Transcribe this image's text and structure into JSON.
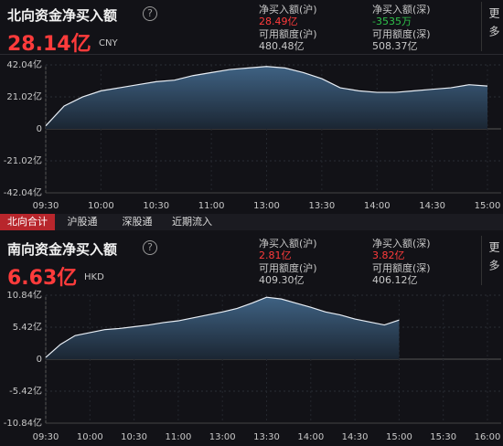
{
  "panels": [
    {
      "title": "北向资金净买入额",
      "amount": "28.14亿",
      "currency": "CNY",
      "more": "更多",
      "stats": [
        {
          "label": "净买入额(沪)",
          "value": "28.49亿",
          "color": "#ff3b3b"
        },
        {
          "label": "净买入额(深)",
          "value": "-3535万",
          "color": "#2fc24a"
        },
        {
          "label": "可用额度(沪)",
          "value": "480.48亿",
          "color": "#c8c8c8"
        },
        {
          "label": "可用额度(深)",
          "value": "508.37亿",
          "color": "#c8c8c8"
        }
      ]
    },
    {
      "title": "南向资金净买入额",
      "amount": "6.63亿",
      "currency": "HKD",
      "more": "更多",
      "stats": [
        {
          "label": "净买入额(沪)",
          "value": "2.81亿",
          "color": "#ff3b3b"
        },
        {
          "label": "净买入额(深)",
          "value": "3.82亿",
          "color": "#ff3b3b"
        },
        {
          "label": "可用额度(沪)",
          "value": "409.30亿",
          "color": "#c8c8c8"
        },
        {
          "label": "可用额度(深)",
          "value": "406.12亿",
          "color": "#c8c8c8"
        }
      ]
    }
  ],
  "tabs": [
    "北向合计",
    "沪股通",
    "深股通",
    "近期流入"
  ],
  "chart_data": [
    {
      "type": "area",
      "color": "#e8eef5",
      "x": [
        "09:30",
        "09:40",
        "09:50",
        "10:00",
        "10:10",
        "10:20",
        "10:30",
        "10:40",
        "10:50",
        "11:00",
        "11:10",
        "11:20",
        "13:00",
        "13:10",
        "13:20",
        "13:30",
        "13:40",
        "13:50",
        "14:00",
        "14:10",
        "14:20",
        "14:30",
        "14:40",
        "14:50",
        "15:00"
      ],
      "values": [
        2,
        15,
        21,
        25,
        27,
        29,
        31,
        32,
        35,
        37,
        39,
        40,
        41,
        40,
        37,
        33,
        27,
        25,
        24,
        24,
        25,
        26,
        27,
        29,
        28.14
      ],
      "ylim": [
        -42.04,
        42.04
      ],
      "yticks": [
        {
          "value": 42.04,
          "label": "42.04亿"
        },
        {
          "value": 21.02,
          "label": "21.02亿"
        },
        0,
        {
          "value": -21.02,
          "label": "-21.02亿"
        },
        {
          "value": -42.04,
          "label": "-42.04亿"
        }
      ],
      "xticks": [
        "09:30",
        "10:00",
        "10:30",
        "11:00",
        "13:00",
        "13:30",
        "14:00",
        "14:30",
        "15:00"
      ]
    },
    {
      "type": "area",
      "color": "#e8eef5",
      "x": [
        "09:30",
        "09:40",
        "09:50",
        "10:00",
        "10:10",
        "10:20",
        "10:30",
        "10:40",
        "10:50",
        "11:00",
        "11:10",
        "11:20",
        "13:00",
        "13:10",
        "13:20",
        "13:30",
        "13:40",
        "13:50",
        "14:00",
        "14:10",
        "14:20",
        "14:30",
        "14:40",
        "14:50",
        "15:00",
        "15:10",
        "15:20",
        "15:30",
        "15:40",
        "15:50",
        "16:00"
      ],
      "values": [
        0.3,
        2.5,
        4,
        4.5,
        5,
        5.2,
        5.5,
        5.8,
        6.2,
        6.5,
        7,
        7.5,
        8,
        8.6,
        9.5,
        10.5,
        10.2,
        9.5,
        8.8,
        8,
        7.5,
        6.8,
        6.3,
        5.8,
        6.63,
        null,
        null,
        null,
        null,
        null,
        null
      ],
      "ylim": [
        -10.84,
        10.84
      ],
      "yticks": [
        {
          "value": 10.84,
          "label": "10.84亿"
        },
        {
          "value": 5.42,
          "label": "5.42亿"
        },
        0,
        {
          "value": -5.42,
          "label": "-5.42亿"
        },
        {
          "value": -10.84,
          "label": "-10.84亿"
        }
      ],
      "xticks": [
        "09:30",
        "10:00",
        "10:30",
        "11:00",
        "13:00",
        "13:30",
        "14:00",
        "14:30",
        "15:00",
        "15:30",
        "16:00"
      ]
    }
  ]
}
